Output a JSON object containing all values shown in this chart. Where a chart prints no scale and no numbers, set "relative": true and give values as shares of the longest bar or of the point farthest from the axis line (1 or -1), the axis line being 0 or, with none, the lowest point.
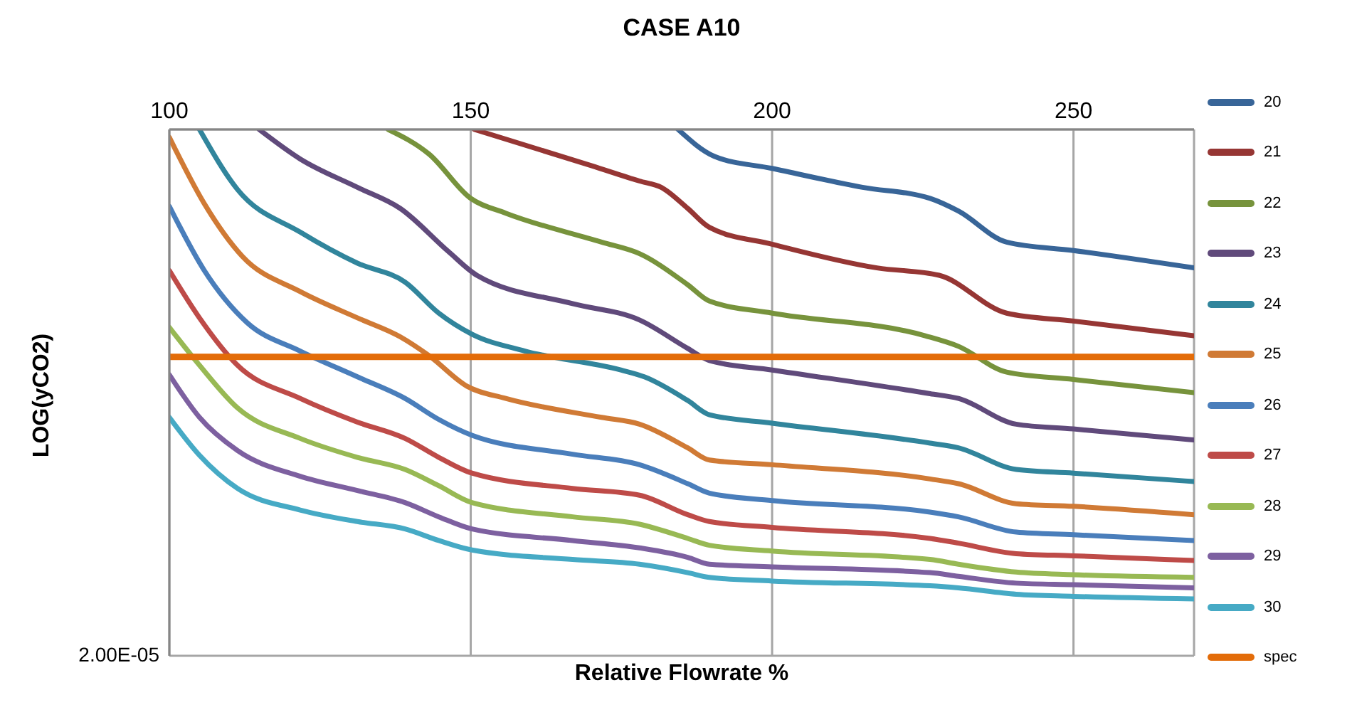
{
  "chart_data": {
    "type": "line",
    "title": "CASE A10",
    "xlabel": "Relative Flowrate %",
    "ylabel": "LOG(yCO2)",
    "relative": true,
    "xlim": [
      100,
      270
    ],
    "xticks": [
      100,
      150,
      200,
      250
    ],
    "annotations": [
      "2.00E-05"
    ],
    "grid": true,
    "legend": "right",
    "marker": "none",
    "line_style": "solid",
    "series": [
      {
        "name": "20",
        "color": "#386598",
        "x": [
          184.4,
          190.4,
          200,
          215,
          226.2,
          230.9,
          238.9,
          250,
          270
        ],
        "values": [
          1,
          0.949,
          0.926,
          0.89,
          0.869,
          0.845,
          0.786,
          0.77,
          0.737
        ]
      },
      {
        "name": "21",
        "color": "#963634",
        "x": [
          150.6,
          170.1,
          178,
          181.6,
          186,
          189.6,
          200,
          217.4,
          227.7,
          238.9,
          250,
          270
        ],
        "values": [
          1,
          0.931,
          0.902,
          0.89,
          0.85,
          0.814,
          0.782,
          0.737,
          0.723,
          0.651,
          0.636,
          0.608
        ]
      },
      {
        "name": "22",
        "color": "#77933c",
        "x": [
          136.3,
          143.1,
          150,
          155.8,
          171.7,
          178,
          186,
          189.6,
          200,
          225.4,
          230.9,
          238.9,
          250,
          270
        ],
        "values": [
          1,
          0.953,
          0.869,
          0.841,
          0.786,
          0.764,
          0.705,
          0.674,
          0.651,
          0.608,
          0.588,
          0.539,
          0.525,
          0.5
        ]
      },
      {
        "name": "23",
        "color": "#604a7b",
        "x": [
          114.9,
          121.7,
          131.2,
          138.3,
          146.3,
          151,
          166.9,
          178,
          186,
          189.6,
          200,
          226.2,
          230.9,
          240.5,
          250,
          270
        ],
        "values": [
          1,
          0.944,
          0.89,
          0.85,
          0.768,
          0.723,
          0.669,
          0.638,
          0.584,
          0.561,
          0.543,
          0.498,
          0.489,
          0.44,
          0.431,
          0.41
        ]
      },
      {
        "name": "24",
        "color": "#31859c",
        "x": [
          105,
          111.3,
          121.7,
          131.2,
          139.1,
          144.7,
          150.2,
          159,
          174.9,
          178.8,
          186,
          189.6,
          200,
          226.2,
          230.9,
          240.5,
          250,
          270
        ],
        "values": [
          1,
          0.886,
          0.805,
          0.746,
          0.71,
          0.651,
          0.611,
          0.579,
          0.543,
          0.53,
          0.485,
          0.458,
          0.442,
          0.404,
          0.395,
          0.354,
          0.347,
          0.331
        ]
      },
      {
        "name": "25",
        "color": "#d07a35",
        "x": [
          100,
          105.8,
          112.1,
          121.7,
          131.2,
          138.3,
          143.1,
          149.4,
          155.8,
          171.7,
          178,
          186,
          189.6,
          200,
          226.2,
          230.9,
          240.5,
          250,
          270
        ],
        "values": [
          0.985,
          0.859,
          0.759,
          0.692,
          0.642,
          0.606,
          0.57,
          0.512,
          0.489,
          0.453,
          0.44,
          0.395,
          0.372,
          0.363,
          0.336,
          0.327,
          0.289,
          0.284,
          0.268
        ]
      },
      {
        "name": "26",
        "color": "#4a7ebb",
        "x": [
          100,
          105.8,
          112.9,
          121.7,
          131.2,
          139.1,
          144.7,
          150.2,
          166.9,
          178,
          186,
          189.6,
          200,
          226.2,
          230.9,
          240.5,
          250,
          270
        ],
        "values": [
          0.854,
          0.732,
          0.633,
          0.579,
          0.53,
          0.489,
          0.449,
          0.419,
          0.383,
          0.363,
          0.327,
          0.309,
          0.295,
          0.273,
          0.264,
          0.235,
          0.23,
          0.219
        ]
      },
      {
        "name": "27",
        "color": "#be4b48",
        "x": [
          100,
          105,
          111.3,
          121.7,
          131.2,
          139.1,
          144.7,
          150.2,
          166.9,
          178,
          186,
          189.6,
          200,
          226.2,
          230.9,
          240.5,
          250,
          270
        ],
        "values": [
          0.732,
          0.642,
          0.552,
          0.489,
          0.444,
          0.413,
          0.377,
          0.347,
          0.318,
          0.305,
          0.268,
          0.255,
          0.244,
          0.223,
          0.214,
          0.194,
          0.19,
          0.181
        ]
      },
      {
        "name": "28",
        "color": "#98b954",
        "x": [
          100,
          105,
          111.3,
          121.7,
          131.2,
          139.1,
          144.7,
          150.2,
          166.9,
          178,
          186,
          189.6,
          200,
          226.2,
          230.9,
          240.5,
          250,
          270
        ],
        "values": [
          0.624,
          0.552,
          0.471,
          0.413,
          0.377,
          0.354,
          0.323,
          0.291,
          0.264,
          0.25,
          0.223,
          0.21,
          0.199,
          0.183,
          0.174,
          0.159,
          0.154,
          0.149
        ]
      },
      {
        "name": "29",
        "color": "#7d60a0",
        "x": [
          100,
          105,
          111.3,
          121.7,
          131.2,
          139.1,
          144.7,
          150.2,
          166.9,
          178,
          186,
          189.6,
          200,
          226.2,
          230.9,
          240.5,
          250,
          270
        ],
        "values": [
          0.534,
          0.453,
          0.39,
          0.341,
          0.314,
          0.291,
          0.264,
          0.241,
          0.219,
          0.205,
          0.187,
          0.174,
          0.169,
          0.158,
          0.151,
          0.138,
          0.135,
          0.129
        ]
      },
      {
        "name": "30",
        "color": "#46aac5",
        "x": [
          100,
          105,
          111.3,
          121.7,
          131.2,
          139.1,
          144.7,
          150.2,
          166.9,
          178,
          186,
          189.6,
          200,
          226.2,
          230.9,
          240.5,
          250,
          270
        ],
        "values": [
          0.453,
          0.381,
          0.318,
          0.277,
          0.255,
          0.241,
          0.219,
          0.201,
          0.183,
          0.174,
          0.158,
          0.149,
          0.142,
          0.133,
          0.129,
          0.117,
          0.113,
          0.108
        ]
      },
      {
        "name": "spec",
        "color": "#e36c09",
        "x": [
          100,
          270
        ],
        "values": [
          0.568,
          0.568
        ]
      }
    ]
  }
}
